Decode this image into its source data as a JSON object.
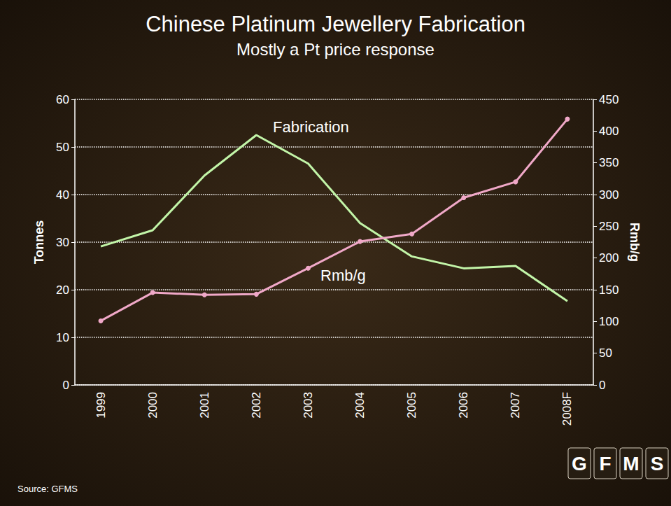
{
  "chart_data": {
    "type": "line",
    "title": "Chinese Platinum Jewellery Fabrication",
    "subtitle": "Mostly a Pt price response",
    "y_label": "Tonnes",
    "y2_label": "Rmb/g",
    "categories": [
      "1999",
      "2000",
      "2001",
      "2002",
      "2003",
      "2004",
      "2005",
      "2006",
      "2007",
      "2008F"
    ],
    "series": [
      {
        "name": "Fabrication",
        "color": "#c2f5a8",
        "marker": "none",
        "line_style": "solid",
        "values": [
          29.1,
          32.5,
          44,
          52.5,
          46.5,
          34,
          27,
          24.5,
          25,
          17.6
        ]
      },
      {
        "name": "Rmb/g",
        "color": "#f0a8c8",
        "marker": "circle",
        "line_style": "solid",
        "axis": "y2",
        "values": [
          101,
          145.5,
          142,
          143,
          184,
          226,
          238,
          295,
          320,
          419
        ]
      }
    ],
    "ylim": [
      0,
      60
    ],
    "yticks": [
      0,
      10,
      20,
      30,
      40,
      50,
      60
    ],
    "y2lim": [
      0,
      450
    ],
    "y2ticks": [
      0,
      50,
      100,
      150,
      200,
      250,
      300,
      350,
      400,
      450
    ],
    "grid": true,
    "annotations": [
      "Source: GFMS"
    ],
    "logo": [
      "G",
      "F",
      "M",
      "S"
    ]
  }
}
